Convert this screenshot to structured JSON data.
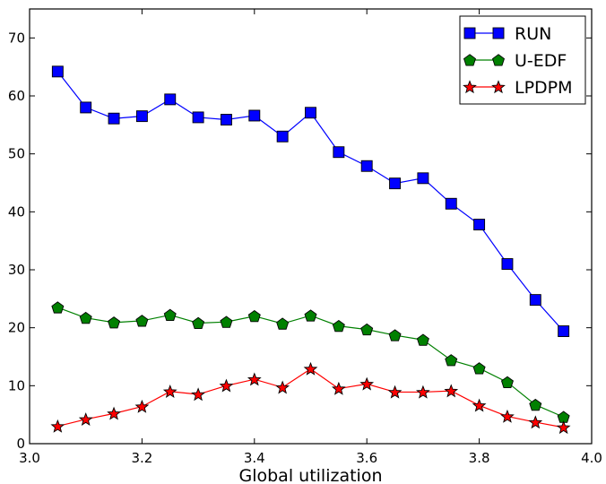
{
  "chart_data": {
    "type": "line",
    "xlabel": "Global utilization",
    "ylabel": "",
    "title": "",
    "xlim": [
      3.0,
      4.0
    ],
    "ylim": [
      0,
      75
    ],
    "x_ticks": [
      "3.0",
      "3.2",
      "3.4",
      "3.6",
      "3.8",
      "4.0"
    ],
    "y_ticks": [
      "0",
      "10",
      "20",
      "30",
      "40",
      "50",
      "60",
      "70"
    ],
    "grid": false,
    "legend_position": "top-right",
    "x": [
      3.05,
      3.1,
      3.15,
      3.2,
      3.25,
      3.3,
      3.35,
      3.4,
      3.45,
      3.5,
      3.55,
      3.6,
      3.65,
      3.7,
      3.75,
      3.8,
      3.85,
      3.9,
      3.95
    ],
    "series": [
      {
        "name": "RUN",
        "color": "#0000ff",
        "marker": "square",
        "values": [
          64.2,
          58.0,
          56.1,
          56.5,
          59.4,
          56.3,
          55.9,
          56.6,
          53.0,
          57.1,
          50.3,
          47.9,
          44.9,
          45.8,
          41.4,
          37.8,
          31.0,
          24.8,
          19.4
        ]
      },
      {
        "name": "U-EDF",
        "color": "#008000",
        "marker": "pentagon",
        "values": [
          23.5,
          21.7,
          20.9,
          21.2,
          22.2,
          20.8,
          21.0,
          22.0,
          20.7,
          22.1,
          20.3,
          19.7,
          18.7,
          17.9,
          14.4,
          13.0,
          10.6,
          6.7,
          4.6
        ]
      },
      {
        "name": "LPDPM",
        "color": "#ff0000",
        "marker": "star",
        "values": [
          3.0,
          4.2,
          5.2,
          6.4,
          9.0,
          8.5,
          10.0,
          11.1,
          9.7,
          12.9,
          9.5,
          10.3,
          8.9,
          8.9,
          9.1,
          6.6,
          4.7,
          3.7,
          2.8
        ]
      }
    ]
  }
}
